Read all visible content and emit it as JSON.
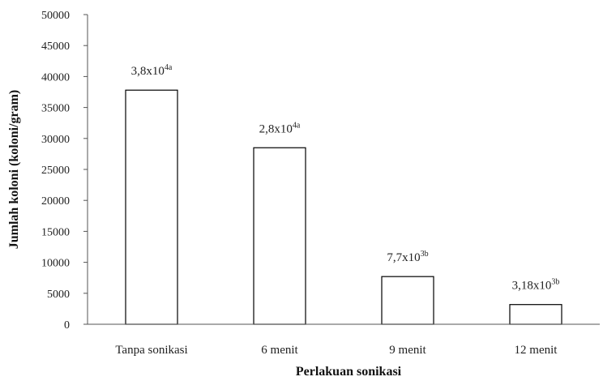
{
  "chart_data": {
    "type": "bar",
    "title": "",
    "xlabel": "Perlakuan sonikasi",
    "ylabel": "Jumlah koloni (koloni/gram)",
    "ylim": [
      0,
      50000
    ],
    "yticks": [
      0,
      5000,
      10000,
      15000,
      20000,
      25000,
      30000,
      35000,
      40000,
      45000,
      50000
    ],
    "grid": false,
    "legend": "none",
    "categories": [
      "Tanpa sonikasi",
      "6 menit",
      "9 menit",
      "12 menit"
    ],
    "values": [
      37800,
      28500,
      7700,
      3180
    ],
    "data_labels": [
      {
        "base": "3,8x10",
        "exp": "4a"
      },
      {
        "base": "2,8x10",
        "exp": "4a"
      },
      {
        "base": "7,7x10",
        "exp": "3b"
      },
      {
        "base": "3,18x10",
        "exp": "3b"
      }
    ],
    "colors": {
      "bar_fill": "#ffffff",
      "bar_stroke": "#000000",
      "axis": "#555555",
      "text": "#222222"
    }
  }
}
